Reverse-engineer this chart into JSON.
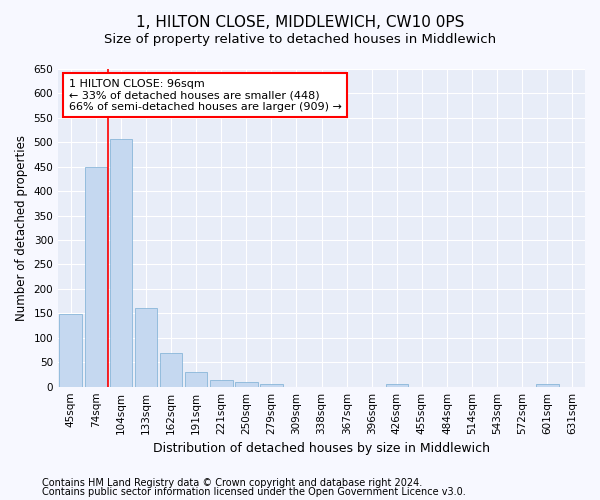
{
  "title": "1, HILTON CLOSE, MIDDLEWICH, CW10 0PS",
  "subtitle": "Size of property relative to detached houses in Middlewich",
  "xlabel": "Distribution of detached houses by size in Middlewich",
  "ylabel": "Number of detached properties",
  "categories": [
    "45sqm",
    "74sqm",
    "104sqm",
    "133sqm",
    "162sqm",
    "191sqm",
    "221sqm",
    "250sqm",
    "279sqm",
    "309sqm",
    "338sqm",
    "367sqm",
    "396sqm",
    "426sqm",
    "455sqm",
    "484sqm",
    "514sqm",
    "543sqm",
    "572sqm",
    "601sqm",
    "631sqm"
  ],
  "values": [
    148,
    450,
    507,
    160,
    68,
    30,
    13,
    9,
    5,
    0,
    0,
    0,
    0,
    6,
    0,
    0,
    0,
    0,
    0,
    5,
    0
  ],
  "bar_color": "#c5d8f0",
  "bar_edge_color": "#7aadd4",
  "ylim": [
    0,
    650
  ],
  "yticks": [
    0,
    50,
    100,
    150,
    200,
    250,
    300,
    350,
    400,
    450,
    500,
    550,
    600,
    650
  ],
  "annotation_line1": "1 HILTON CLOSE: 96sqm",
  "annotation_line2": "← 33% of detached houses are smaller (448)",
  "annotation_line3": "66% of semi-detached houses are larger (909) →",
  "red_line_x": 1.5,
  "footnote1": "Contains HM Land Registry data © Crown copyright and database right 2024.",
  "footnote2": "Contains public sector information licensed under the Open Government Licence v3.0.",
  "bg_color": "#f7f8ff",
  "plot_bg_color": "#e8edf8",
  "grid_color": "#ffffff",
  "title_fontsize": 11,
  "subtitle_fontsize": 9.5,
  "annotation_fontsize": 8,
  "tick_fontsize": 7.5,
  "xlabel_fontsize": 9,
  "ylabel_fontsize": 8.5,
  "footnote_fontsize": 7
}
